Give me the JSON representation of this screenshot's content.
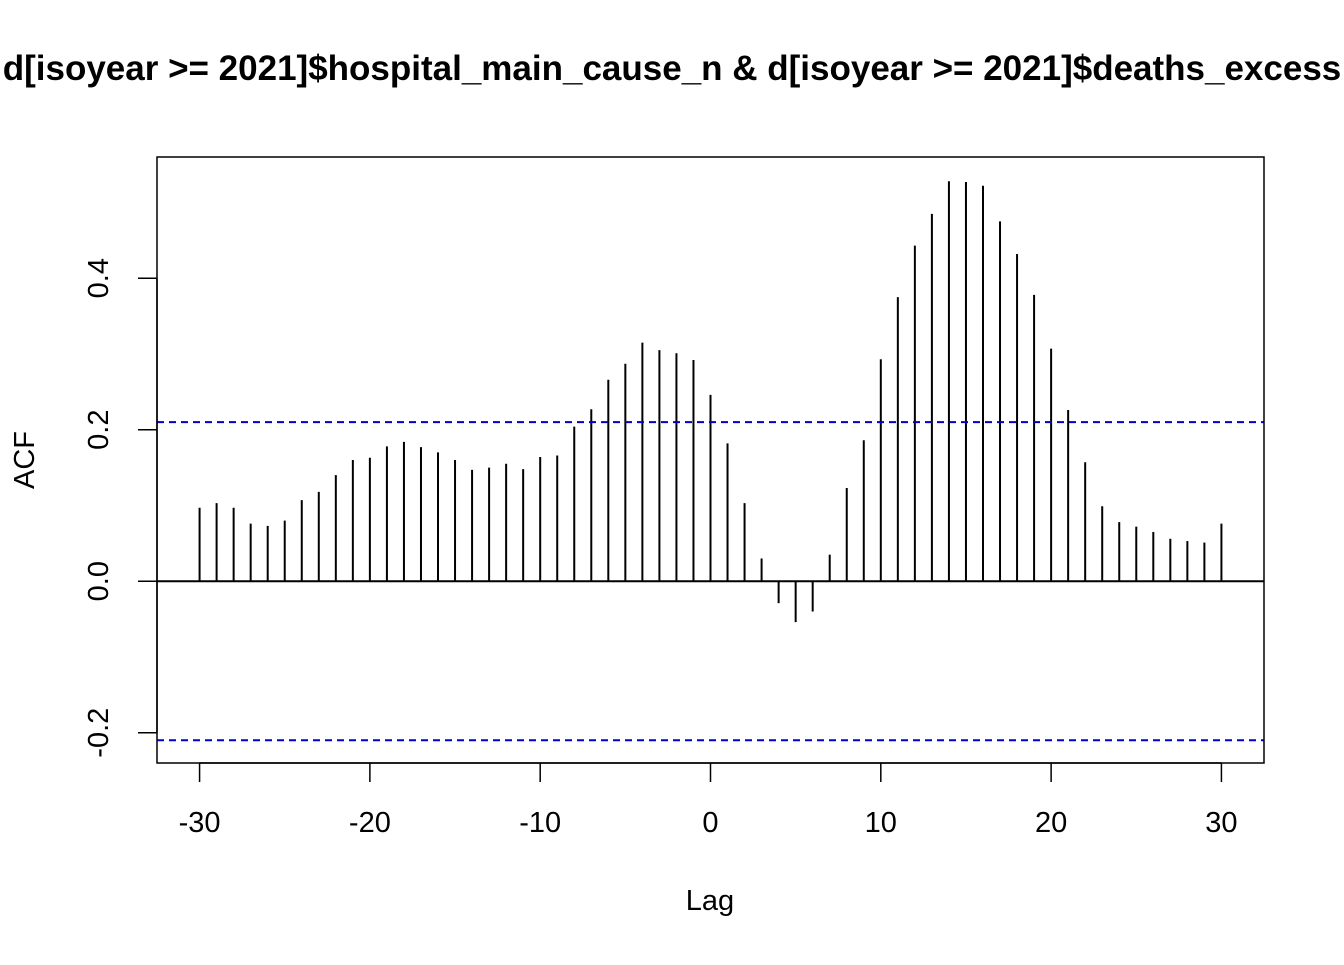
{
  "chart_data": {
    "type": "bar",
    "title": "d[isoyear >= 2021]$hospital_main_cause_n & d[isoyear >= 2021]$deaths_excess",
    "xlabel": "Lag",
    "ylabel": "ACF",
    "xlim": [
      -32.5,
      32.5
    ],
    "ylim": [
      -0.24,
      0.56
    ],
    "x_ticks": [
      -30,
      -20,
      -10,
      0,
      10,
      20,
      30
    ],
    "x_tick_labels": [
      "-30",
      "-20",
      "-10",
      "0",
      "10",
      "20",
      "30"
    ],
    "y_ticks": [
      -0.2,
      0.0,
      0.2,
      0.4
    ],
    "y_tick_labels": [
      "-0.2",
      "0.0",
      "0.2",
      "0.4"
    ],
    "confidence_bound": 0.21,
    "grid": false,
    "colors": {
      "bars": "#000000",
      "confidence_lines": "#0000cd",
      "zero_line": "#000000"
    },
    "lags": [
      -30,
      -29,
      -28,
      -27,
      -26,
      -25,
      -24,
      -23,
      -22,
      -21,
      -20,
      -19,
      -18,
      -17,
      -16,
      -15,
      -14,
      -13,
      -12,
      -11,
      -10,
      -9,
      -8,
      -7,
      -6,
      -5,
      -4,
      -3,
      -2,
      -1,
      0,
      1,
      2,
      3,
      4,
      5,
      6,
      7,
      8,
      9,
      10,
      11,
      12,
      13,
      14,
      15,
      16,
      17,
      18,
      19,
      20,
      21,
      22,
      23,
      24,
      25,
      26,
      27,
      28,
      29,
      30
    ],
    "values": [
      0.097,
      0.103,
      0.097,
      0.076,
      0.073,
      0.08,
      0.107,
      0.118,
      0.14,
      0.16,
      0.163,
      0.178,
      0.184,
      0.177,
      0.17,
      0.16,
      0.147,
      0.15,
      0.155,
      0.148,
      0.164,
      0.166,
      0.204,
      0.227,
      0.266,
      0.287,
      0.315,
      0.305,
      0.301,
      0.292,
      0.246,
      0.182,
      0.103,
      0.03,
      -0.029,
      -0.054,
      -0.04,
      0.035,
      0.123,
      0.186,
      0.293,
      0.375,
      0.443,
      0.485,
      0.528,
      0.527,
      0.522,
      0.475,
      0.432,
      0.378,
      0.307,
      0.226,
      0.157,
      0.099,
      0.078,
      0.072,
      0.065,
      0.056,
      0.053,
      0.051,
      0.076
    ]
  }
}
